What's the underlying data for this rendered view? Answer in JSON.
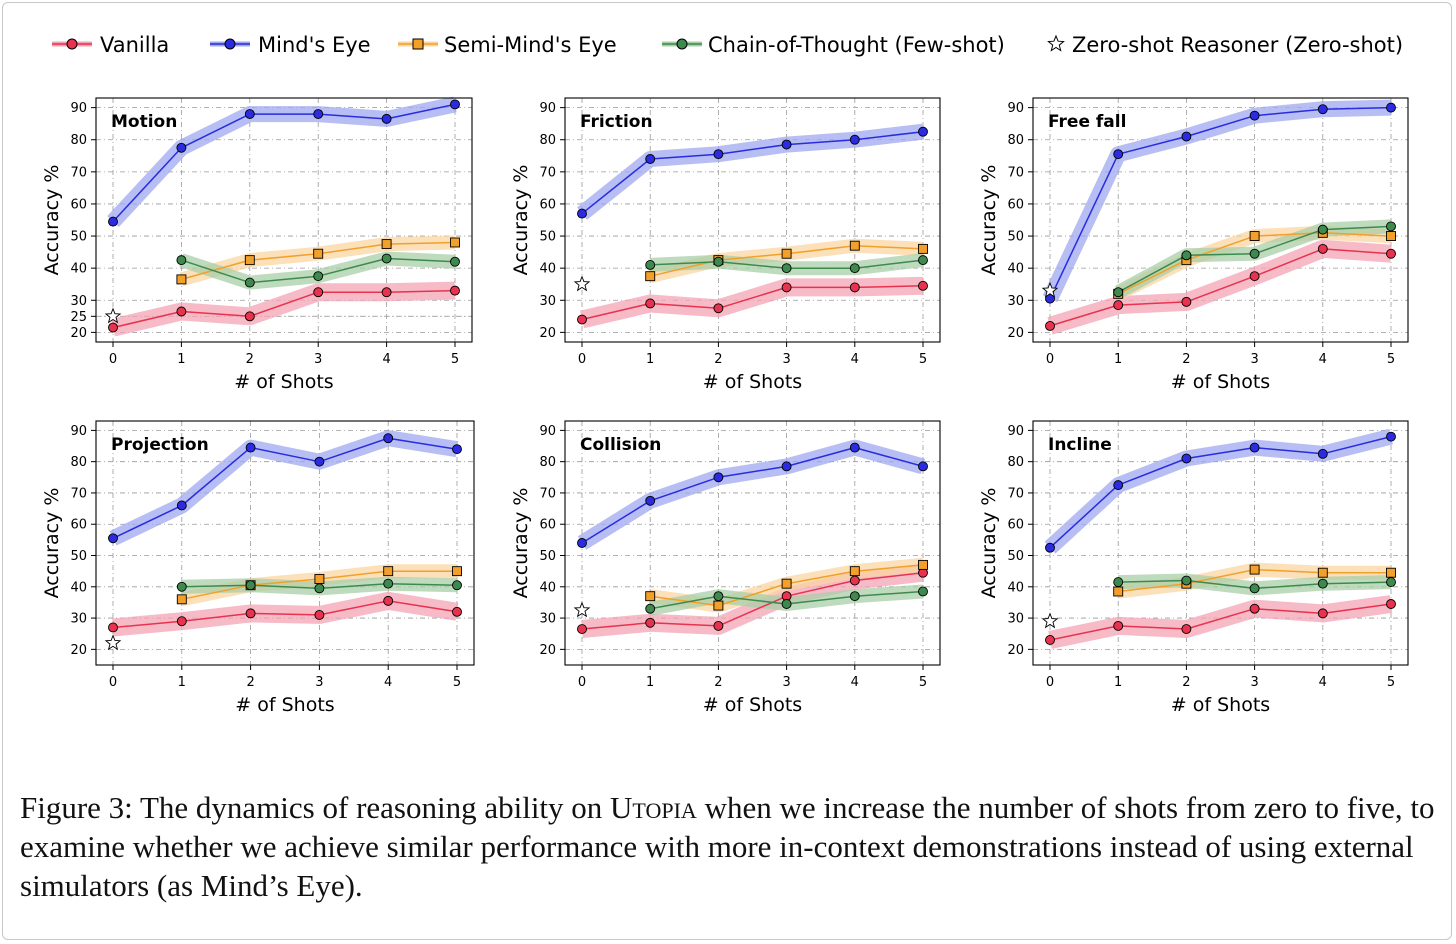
{
  "legend": {
    "vanilla": "Vanilla",
    "minds_eye": "Mind's Eye",
    "semi_minds_eye": "Semi-Mind's Eye",
    "cot": "Chain-of-Thought (Few-shot)",
    "zero_shot": "Zero-shot Reasoner (Zero-shot)"
  },
  "colors": {
    "vanilla": "#e8334f",
    "minds_eye": "#2b2be0",
    "semi_minds_eye": "#f2a02a",
    "cot": "#3e8a4e",
    "vanilla_band": "#f4a3b4",
    "minds_eye_band": "#9fa8f0",
    "semi_band": "#f9d6a2",
    "cot_band": "#a9cfa8"
  },
  "caption": {
    "prefix": "Figure 3: The dynamics of reasoning ability on ",
    "smallcaps": "Utopia",
    "suffix": " when we increase the number of shots from zero to five, to examine whether we achieve similar performance with more in-context demonstrations instead of using external simulators (as Mind’s Eye)."
  },
  "chart_data": [
    {
      "type": "line",
      "title": "Motion",
      "xlabel": "# of Shots",
      "ylabel": "Accuracy %",
      "x": [
        0,
        1,
        2,
        3,
        4,
        5
      ],
      "yticks": [
        20,
        25,
        30,
        40,
        50,
        60,
        70,
        80,
        90
      ],
      "ylim": [
        17,
        93
      ],
      "series": [
        {
          "key": "minds_eye",
          "name": "Mind's Eye",
          "x": [
            0,
            1,
            2,
            3,
            4,
            5
          ],
          "values": [
            54.5,
            77.5,
            88,
            88,
            86.5,
            91
          ]
        },
        {
          "key": "semi_minds_eye",
          "name": "Semi-Mind's Eye",
          "x": [
            1,
            2,
            3,
            4,
            5
          ],
          "values": [
            36.5,
            42.5,
            44.5,
            47.5,
            48
          ]
        },
        {
          "key": "cot",
          "name": "Chain-of-Thought (Few-shot)",
          "x": [
            1,
            2,
            3,
            4,
            5
          ],
          "values": [
            42.5,
            35.5,
            37.5,
            43,
            42
          ]
        },
        {
          "key": "vanilla",
          "name": "Vanilla",
          "x": [
            0,
            1,
            2,
            3,
            4,
            5
          ],
          "values": [
            21.5,
            26.5,
            25,
            32.5,
            32.5,
            33
          ]
        }
      ],
      "zero_shot": 25,
      "reference_line": 25
    },
    {
      "type": "line",
      "title": "Friction",
      "xlabel": "# of Shots",
      "ylabel": "Accuracy %",
      "x": [
        0,
        1,
        2,
        3,
        4,
        5
      ],
      "yticks": [
        20,
        30,
        40,
        50,
        60,
        70,
        80,
        90
      ],
      "ylim": [
        17,
        93
      ],
      "series": [
        {
          "key": "minds_eye",
          "name": "Mind's Eye",
          "x": [
            0,
            1,
            2,
            3,
            4,
            5
          ],
          "values": [
            57,
            74,
            75.5,
            78.5,
            80,
            82.5
          ]
        },
        {
          "key": "semi_minds_eye",
          "name": "Semi-Mind's Eye",
          "x": [
            1,
            2,
            3,
            4,
            5
          ],
          "values": [
            37.5,
            42.5,
            44.5,
            47,
            46
          ]
        },
        {
          "key": "cot",
          "name": "Chain-of-Thought (Few-shot)",
          "x": [
            1,
            2,
            3,
            4,
            5
          ],
          "values": [
            41,
            42,
            40,
            40,
            42.5
          ]
        },
        {
          "key": "vanilla",
          "name": "Vanilla",
          "x": [
            0,
            1,
            2,
            3,
            4,
            5
          ],
          "values": [
            24,
            29,
            27.5,
            34,
            34,
            34.5
          ]
        }
      ],
      "zero_shot": 35
    },
    {
      "type": "line",
      "title": "Free fall",
      "xlabel": "# of Shots",
      "ylabel": "Accuracy %",
      "x": [
        0,
        1,
        2,
        3,
        4,
        5
      ],
      "yticks": [
        20,
        30,
        40,
        50,
        60,
        70,
        80,
        90
      ],
      "ylim": [
        17,
        93
      ],
      "series": [
        {
          "key": "minds_eye",
          "name": "Mind's Eye",
          "x": [
            0,
            1,
            2,
            3,
            4,
            5
          ],
          "values": [
            30.5,
            75.5,
            81,
            87.5,
            89.5,
            90
          ]
        },
        {
          "key": "semi_minds_eye",
          "name": "Semi-Mind's Eye",
          "x": [
            1,
            2,
            3,
            4,
            5
          ],
          "values": [
            32,
            42.5,
            50,
            51,
            50
          ]
        },
        {
          "key": "cot",
          "name": "Chain-of-Thought (Few-shot)",
          "x": [
            1,
            2,
            3,
            4,
            5
          ],
          "values": [
            32.5,
            44,
            44.5,
            52,
            53
          ]
        },
        {
          "key": "vanilla",
          "name": "Vanilla",
          "x": [
            0,
            1,
            2,
            3,
            4,
            5
          ],
          "values": [
            22,
            28.5,
            29.5,
            37.5,
            46,
            44.5
          ]
        }
      ],
      "zero_shot": 33
    },
    {
      "type": "line",
      "title": "Projection",
      "xlabel": "# of Shots",
      "ylabel": "Accuracy %",
      "x": [
        0,
        1,
        2,
        3,
        4,
        5
      ],
      "yticks": [
        20,
        30,
        40,
        50,
        60,
        70,
        80,
        90
      ],
      "ylim": [
        15,
        93
      ],
      "series": [
        {
          "key": "minds_eye",
          "name": "Mind's Eye",
          "x": [
            0,
            1,
            2,
            3,
            4,
            5
          ],
          "values": [
            55.5,
            66,
            84.5,
            80,
            87.5,
            84
          ]
        },
        {
          "key": "semi_minds_eye",
          "name": "Semi-Mind's Eye",
          "x": [
            1,
            2,
            3,
            4,
            5
          ],
          "values": [
            36,
            40.5,
            42.5,
            45,
            45
          ]
        },
        {
          "key": "cot",
          "name": "Chain-of-Thought (Few-shot)",
          "x": [
            1,
            2,
            3,
            4,
            5
          ],
          "values": [
            40,
            40.5,
            39.5,
            41,
            40.5
          ]
        },
        {
          "key": "vanilla",
          "name": "Vanilla",
          "x": [
            0,
            1,
            2,
            3,
            4,
            5
          ],
          "values": [
            27,
            29,
            31.5,
            31,
            35.5,
            32
          ]
        }
      ],
      "zero_shot": 22
    },
    {
      "type": "line",
      "title": "Collision",
      "xlabel": "# of Shots",
      "ylabel": "Accuracy %",
      "x": [
        0,
        1,
        2,
        3,
        4,
        5
      ],
      "yticks": [
        20,
        30,
        40,
        50,
        60,
        70,
        80,
        90
      ],
      "ylim": [
        15,
        93
      ],
      "series": [
        {
          "key": "minds_eye",
          "name": "Mind's Eye",
          "x": [
            0,
            1,
            2,
            3,
            4,
            5
          ],
          "values": [
            54,
            67.5,
            75,
            78.5,
            84.5,
            78.5
          ]
        },
        {
          "key": "semi_minds_eye",
          "name": "Semi-Mind's Eye",
          "x": [
            1,
            2,
            3,
            4,
            5
          ],
          "values": [
            37,
            34,
            41,
            45,
            47
          ]
        },
        {
          "key": "cot",
          "name": "Chain-of-Thought (Few-shot)",
          "x": [
            1,
            2,
            3,
            4,
            5
          ],
          "values": [
            33,
            37,
            34.5,
            37,
            38.5
          ]
        },
        {
          "key": "vanilla",
          "name": "Vanilla",
          "x": [
            0,
            1,
            2,
            3,
            4,
            5
          ],
          "values": [
            26.5,
            28.5,
            27.5,
            37,
            42,
            44.5
          ]
        }
      ],
      "zero_shot": 32.5
    },
    {
      "type": "line",
      "title": "Incline",
      "xlabel": "# of Shots",
      "ylabel": "Accuracy %",
      "x": [
        0,
        1,
        2,
        3,
        4,
        5
      ],
      "yticks": [
        20,
        30,
        40,
        50,
        60,
        70,
        80,
        90
      ],
      "ylim": [
        15,
        93
      ],
      "series": [
        {
          "key": "minds_eye",
          "name": "Mind's Eye",
          "x": [
            0,
            1,
            2,
            3,
            4,
            5
          ],
          "values": [
            52.5,
            72.5,
            81,
            84.5,
            82.5,
            88
          ]
        },
        {
          "key": "semi_minds_eye",
          "name": "Semi-Mind's Eye",
          "x": [
            1,
            2,
            3,
            4,
            5
          ],
          "values": [
            38.5,
            41,
            45.5,
            44.5,
            44.5
          ]
        },
        {
          "key": "cot",
          "name": "Chain-of-Thought (Few-shot)",
          "x": [
            1,
            2,
            3,
            4,
            5
          ],
          "values": [
            41.5,
            42,
            39.5,
            41,
            41.5
          ]
        },
        {
          "key": "vanilla",
          "name": "Vanilla",
          "x": [
            0,
            1,
            2,
            3,
            4,
            5
          ],
          "values": [
            23,
            27.5,
            26.5,
            33,
            31.5,
            34.5
          ]
        }
      ],
      "zero_shot": 29
    }
  ]
}
